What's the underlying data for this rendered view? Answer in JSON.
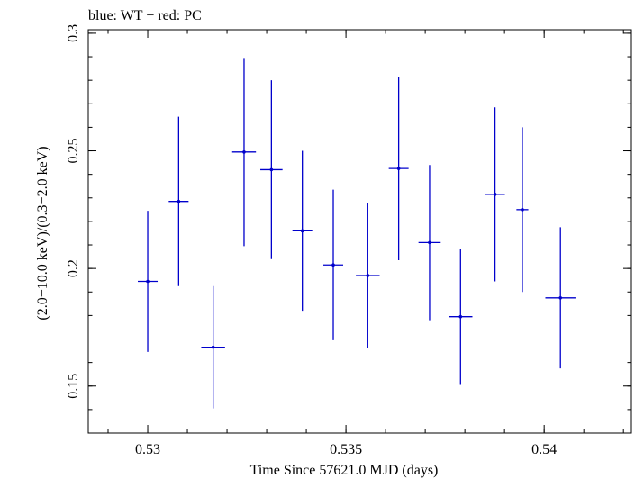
{
  "chart_data": {
    "type": "scatter",
    "title": "blue: WT − red: PC",
    "xlabel": "Time Since 57621.0 MJD (days)",
    "ylabel": "(2.0−10.0 keV)/(0.3−2.0 keV)",
    "xlim": [
      0.5285,
      0.5422
    ],
    "ylim": [
      0.13,
      0.3015
    ],
    "x_ticks": [
      {
        "value": 0.53,
        "label": "0.53"
      },
      {
        "value": 0.535,
        "label": "0.535"
      },
      {
        "value": 0.54,
        "label": "0.54"
      }
    ],
    "y_ticks": [
      {
        "value": 0.15,
        "label": "0.15"
      },
      {
        "value": 0.2,
        "label": "0.2"
      },
      {
        "value": 0.25,
        "label": "0.25"
      },
      {
        "value": 0.3,
        "label": "0.3"
      }
    ],
    "x_minor_step": 0.001,
    "y_minor_step": 0.01,
    "grid": false,
    "series": [
      {
        "color": "#0000cc",
        "points": [
          {
            "x": 0.53,
            "xerr": 0.00025,
            "y": 0.1945,
            "yerr": 0.03
          },
          {
            "x": 0.53078,
            "xerr": 0.00025,
            "y": 0.2285,
            "yerr": 0.036
          },
          {
            "x": 0.53165,
            "xerr": 0.0003,
            "y": 0.1665,
            "yerr": 0.026
          },
          {
            "x": 0.53243,
            "xerr": 0.0003,
            "y": 0.2495,
            "yerr": 0.04
          },
          {
            "x": 0.53312,
            "xerr": 0.00028,
            "y": 0.242,
            "yerr": 0.038
          },
          {
            "x": 0.5339,
            "xerr": 0.00025,
            "y": 0.216,
            "yerr": 0.034
          },
          {
            "x": 0.53468,
            "xerr": 0.00025,
            "y": 0.2015,
            "yerr": 0.032
          },
          {
            "x": 0.53555,
            "xerr": 0.0003,
            "y": 0.197,
            "yerr": 0.031
          },
          {
            "x": 0.53633,
            "xerr": 0.00025,
            "y": 0.2425,
            "yerr": 0.039
          },
          {
            "x": 0.53711,
            "xerr": 0.00028,
            "y": 0.211,
            "yerr": 0.033
          },
          {
            "x": 0.53789,
            "xerr": 0.0003,
            "y": 0.1795,
            "yerr": 0.029
          },
          {
            "x": 0.53876,
            "xerr": 0.00025,
            "y": 0.2315,
            "yerr": 0.037
          },
          {
            "x": 0.53945,
            "xerr": 0.00015,
            "y": 0.225,
            "yerr": 0.035
          },
          {
            "x": 0.54041,
            "xerr": 0.00038,
            "y": 0.1875,
            "yerr": 0.03
          }
        ]
      }
    ]
  }
}
